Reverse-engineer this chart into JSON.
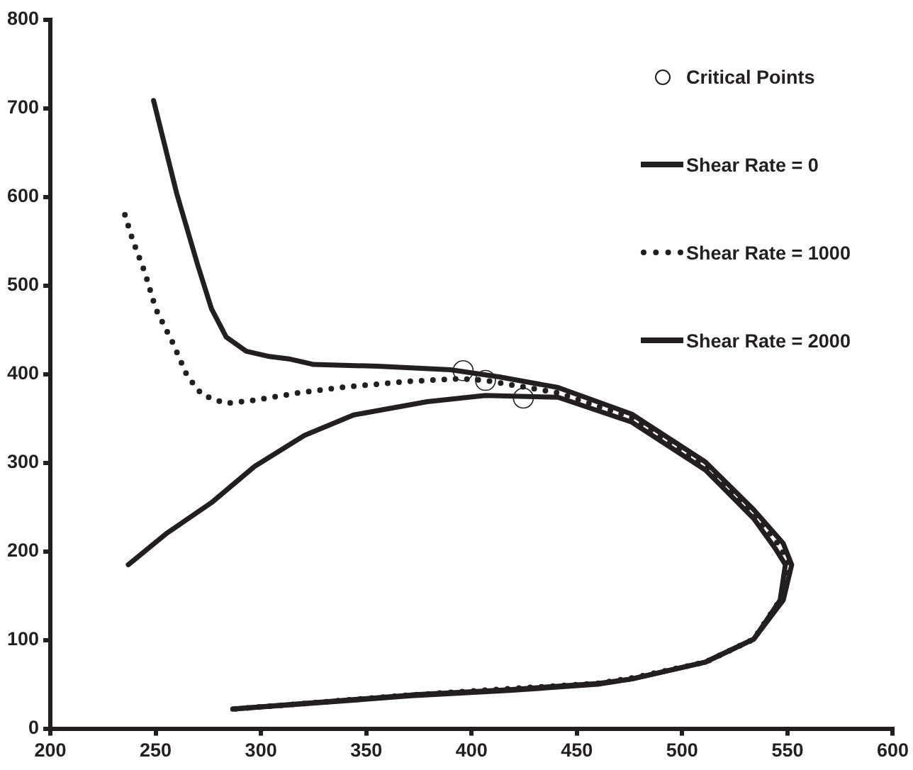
{
  "chart_data": {
    "type": "line",
    "xlim": [
      200,
      600
    ],
    "ylim": [
      0,
      800
    ],
    "xticks": [
      200,
      250,
      300,
      350,
      400,
      450,
      500,
      550,
      600
    ],
    "yticks": [
      0,
      100,
      200,
      300,
      400,
      500,
      600,
      700,
      800
    ],
    "grid": false,
    "legend": "top right",
    "series": [
      {
        "name": "Critical Points",
        "type": "scatter",
        "marker": "circle",
        "color": "#231f20",
        "x": [
          396,
          406.6,
          424.6
        ],
        "values": [
          404,
          393,
          373
        ]
      },
      {
        "name": "Shear Rate = 0",
        "line_style": "solid",
        "marker": "none",
        "color": "#231f20",
        "x": [
          249,
          260,
          270,
          276.5,
          283.5,
          293,
          304,
          314,
          325,
          355.5,
          390,
          413,
          441,
          476,
          511,
          534,
          548,
          552,
          548,
          534,
          511,
          476,
          460,
          418,
          371.6,
          286.6
        ],
        "values": [
          709,
          604,
          523,
          474,
          442,
          426,
          420,
          417,
          411,
          409,
          405,
          397,
          385,
          355,
          301,
          247,
          209,
          185,
          145,
          101,
          75,
          56,
          50,
          43,
          37,
          22
        ]
      },
      {
        "name": "Shear Rate = 1000",
        "line_style": "dotted",
        "marker": "none",
        "color": "#231f20",
        "x": [
          235.4,
          239,
          245,
          250,
          258,
          265,
          272,
          283,
          295,
          318,
          341.6,
          370.6,
          395,
          406.6,
          441,
          476,
          511,
          534,
          546,
          551,
          546.5,
          534,
          511,
          476,
          460,
          418,
          371.6,
          286.6
        ],
        "values": [
          580,
          552,
          514,
          474,
          436,
          398,
          377,
          367,
          370,
          379,
          386,
          392,
          395,
          393,
          379,
          351,
          296,
          242,
          207,
          185,
          145,
          101,
          75,
          57,
          51,
          45,
          38,
          22
        ]
      },
      {
        "name": "Shear Rate = 2000",
        "line_style": "solid",
        "marker": "none",
        "color": "#231f20",
        "x": [
          237,
          255,
          276.5,
          297,
          320.7,
          344,
          379,
          406.6,
          441,
          476,
          511,
          534,
          544,
          549,
          546.5,
          534,
          511,
          476,
          460,
          418,
          371.6,
          286.6
        ],
        "values": [
          185,
          220,
          255,
          296,
          331,
          354,
          369,
          376,
          374,
          346,
          292,
          237,
          204,
          185,
          145,
          101,
          75,
          56,
          51,
          44,
          38,
          22
        ]
      }
    ]
  }
}
